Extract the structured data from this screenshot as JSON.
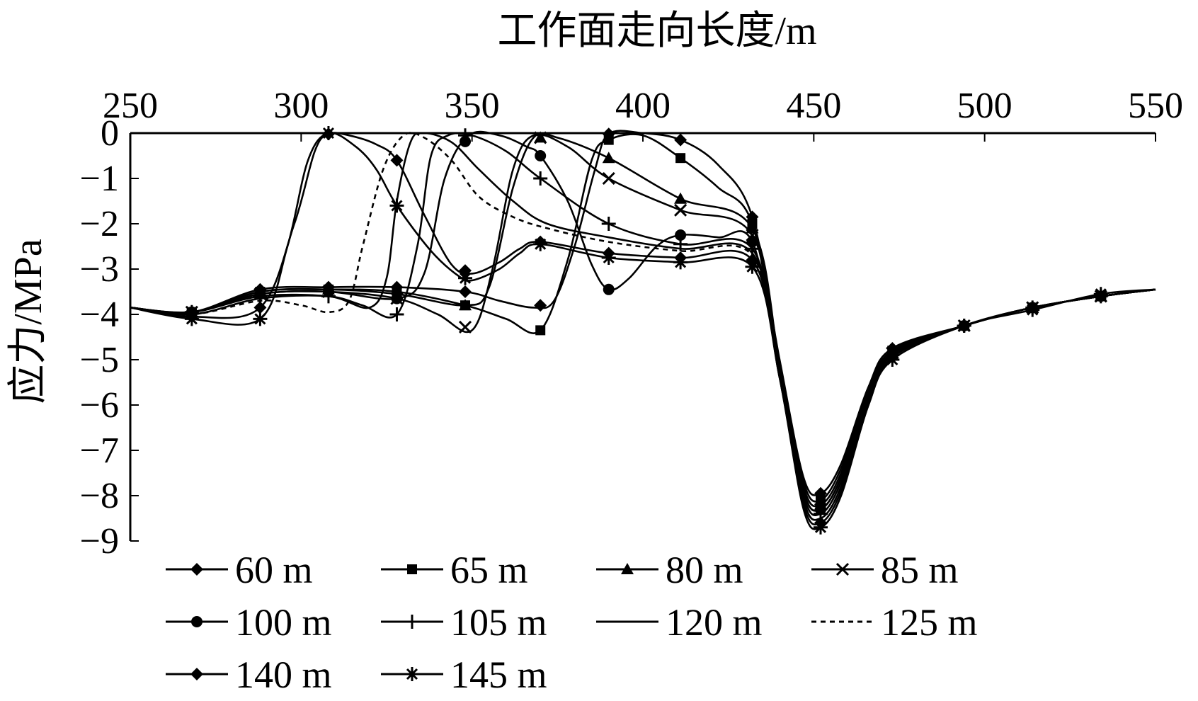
{
  "chart_data": {
    "type": "line",
    "xlabel": "工作面走向长度/m",
    "ylabel": "应力/MPa",
    "xlim": [
      250,
      550
    ],
    "ylim": [
      -9,
      0
    ],
    "x_axis_position": "top",
    "x_ticks": [
      "250",
      "300",
      "350",
      "400",
      "450",
      "500",
      "550"
    ],
    "y_ticks": [
      "0",
      "−1",
      "−2",
      "−3",
      "−4",
      "−5",
      "−6",
      "−7",
      "−8",
      "−9"
    ],
    "grid": false,
    "legend_position": "bottom",
    "series": [
      {
        "name": "60 m",
        "marker": "diamond",
        "dash": "solid",
        "points": [
          [
            250,
            -3.85
          ],
          [
            268,
            -3.95
          ],
          [
            288,
            -3.45
          ],
          [
            308,
            -3.4
          ],
          [
            328,
            -3.4
          ],
          [
            348,
            -3.5
          ],
          [
            358,
            -3.7
          ],
          [
            368,
            -3.85
          ],
          [
            374,
            -3.7
          ],
          [
            380,
            -2.5
          ],
          [
            386,
            -0.8
          ],
          [
            390,
            -0.02
          ],
          [
            400,
            0
          ],
          [
            411,
            -0.15
          ],
          [
            422,
            -0.7
          ],
          [
            432,
            -1.85
          ],
          [
            440,
            -5.0
          ],
          [
            447,
            -7.6
          ],
          [
            452,
            -7.95
          ],
          [
            458,
            -7.3
          ],
          [
            466,
            -5.6
          ],
          [
            473,
            -4.75
          ],
          [
            494,
            -4.25
          ],
          [
            514,
            -3.85
          ],
          [
            534,
            -3.6
          ],
          [
            550,
            -3.45
          ]
        ]
      },
      {
        "name": "65 m",
        "marker": "square",
        "dash": "solid",
        "points": [
          [
            250,
            -3.85
          ],
          [
            268,
            -3.95
          ],
          [
            288,
            -3.5
          ],
          [
            308,
            -3.45
          ],
          [
            328,
            -3.5
          ],
          [
            348,
            -3.8
          ],
          [
            360,
            -4.1
          ],
          [
            370,
            -4.35
          ],
          [
            378,
            -2.8
          ],
          [
            385,
            -0.6
          ],
          [
            390,
            -0.15
          ],
          [
            400,
            -0.05
          ],
          [
            411,
            -0.55
          ],
          [
            422,
            -1.2
          ],
          [
            432,
            -2.0
          ],
          [
            440,
            -5.1
          ],
          [
            447,
            -7.7
          ],
          [
            452,
            -8.1
          ],
          [
            458,
            -7.4
          ],
          [
            466,
            -5.7
          ],
          [
            473,
            -4.8
          ],
          [
            494,
            -4.25
          ],
          [
            514,
            -3.85
          ],
          [
            534,
            -3.6
          ],
          [
            550,
            -3.45
          ]
        ]
      },
      {
        "name": "80 m",
        "marker": "triangle",
        "dash": "solid",
        "points": [
          [
            250,
            -3.85
          ],
          [
            268,
            -3.95
          ],
          [
            288,
            -3.5
          ],
          [
            308,
            -3.45
          ],
          [
            328,
            -3.55
          ],
          [
            348,
            -3.8
          ],
          [
            355,
            -3.4
          ],
          [
            362,
            -1.2
          ],
          [
            368,
            -0.1
          ],
          [
            375,
            -0.1
          ],
          [
            390,
            -0.55
          ],
          [
            411,
            -1.45
          ],
          [
            432,
            -2.1
          ],
          [
            440,
            -5.1
          ],
          [
            447,
            -7.8
          ],
          [
            452,
            -8.2
          ],
          [
            458,
            -7.5
          ],
          [
            466,
            -5.7
          ],
          [
            473,
            -4.8
          ],
          [
            494,
            -4.25
          ],
          [
            514,
            -3.85
          ],
          [
            534,
            -3.6
          ],
          [
            550,
            -3.45
          ]
        ]
      },
      {
        "name": "85 m",
        "marker": "x",
        "dash": "solid",
        "points": [
          [
            250,
            -3.85
          ],
          [
            268,
            -3.95
          ],
          [
            288,
            -3.55
          ],
          [
            308,
            -3.5
          ],
          [
            328,
            -3.65
          ],
          [
            340,
            -4.0
          ],
          [
            350,
            -4.35
          ],
          [
            356,
            -3.0
          ],
          [
            362,
            -0.8
          ],
          [
            368,
            -0.05
          ],
          [
            378,
            -0.3
          ],
          [
            390,
            -1.0
          ],
          [
            411,
            -1.7
          ],
          [
            432,
            -2.25
          ],
          [
            440,
            -5.2
          ],
          [
            447,
            -7.9
          ],
          [
            452,
            -8.3
          ],
          [
            458,
            -7.6
          ],
          [
            466,
            -5.8
          ],
          [
            473,
            -4.85
          ],
          [
            494,
            -4.25
          ],
          [
            514,
            -3.85
          ],
          [
            534,
            -3.6
          ],
          [
            550,
            -3.45
          ]
        ]
      },
      {
        "name": "100 m",
        "marker": "circle",
        "dash": "solid",
        "points": [
          [
            250,
            -3.85
          ],
          [
            268,
            -3.95
          ],
          [
            288,
            -3.55
          ],
          [
            308,
            -3.5
          ],
          [
            328,
            -3.65
          ],
          [
            336,
            -3.1
          ],
          [
            342,
            -1.0
          ],
          [
            349,
            -0.05
          ],
          [
            358,
            -0.05
          ],
          [
            366,
            -0.3
          ],
          [
            370,
            -0.5
          ],
          [
            378,
            -1.5
          ],
          [
            385,
            -2.9
          ],
          [
            390,
            -3.45
          ],
          [
            396,
            -3.2
          ],
          [
            404,
            -2.5
          ],
          [
            411,
            -2.25
          ],
          [
            422,
            -2.3
          ],
          [
            432,
            -2.4
          ],
          [
            440,
            -5.2
          ],
          [
            447,
            -7.9
          ],
          [
            452,
            -8.3
          ],
          [
            458,
            -7.6
          ],
          [
            466,
            -5.8
          ],
          [
            473,
            -4.85
          ],
          [
            494,
            -4.25
          ],
          [
            514,
            -3.85
          ],
          [
            534,
            -3.6
          ],
          [
            550,
            -3.45
          ]
        ]
      },
      {
        "name": "105 m",
        "marker": "plus",
        "dash": "solid",
        "points": [
          [
            250,
            -3.85
          ],
          [
            268,
            -3.95
          ],
          [
            288,
            -3.6
          ],
          [
            308,
            -3.6
          ],
          [
            318,
            -3.8
          ],
          [
            328,
            -4.0
          ],
          [
            334,
            -2.5
          ],
          [
            338,
            -0.5
          ],
          [
            343,
            -0.05
          ],
          [
            350,
            -0.05
          ],
          [
            360,
            -0.4
          ],
          [
            370,
            -1.0
          ],
          [
            390,
            -2.0
          ],
          [
            411,
            -2.45
          ],
          [
            432,
            -2.55
          ],
          [
            440,
            -5.3
          ],
          [
            447,
            -8.0
          ],
          [
            452,
            -8.4
          ],
          [
            458,
            -7.7
          ],
          [
            466,
            -5.9
          ],
          [
            473,
            -4.9
          ],
          [
            494,
            -4.25
          ],
          [
            514,
            -3.85
          ],
          [
            534,
            -3.6
          ],
          [
            550,
            -3.45
          ]
        ]
      },
      {
        "name": "120 m",
        "marker": "none",
        "dash": "solid",
        "points": [
          [
            250,
            -3.85
          ],
          [
            268,
            -4.0
          ],
          [
            288,
            -3.65
          ],
          [
            308,
            -3.6
          ],
          [
            320,
            -3.85
          ],
          [
            325,
            -3.2
          ],
          [
            328,
            -1.5
          ],
          [
            332,
            -0.2
          ],
          [
            336,
            0
          ],
          [
            344,
            -0.2
          ],
          [
            352,
            -0.8
          ],
          [
            362,
            -1.5
          ],
          [
            372,
            -2.0
          ],
          [
            390,
            -2.3
          ],
          [
            411,
            -2.55
          ],
          [
            432,
            -2.65
          ],
          [
            440,
            -5.3
          ],
          [
            447,
            -8.1
          ],
          [
            452,
            -8.5
          ],
          [
            458,
            -7.8
          ],
          [
            466,
            -5.9
          ],
          [
            473,
            -4.9
          ],
          [
            494,
            -4.25
          ],
          [
            514,
            -3.85
          ],
          [
            534,
            -3.6
          ],
          [
            550,
            -3.45
          ]
        ]
      },
      {
        "name": "125 m",
        "marker": "none",
        "dash": "dashed",
        "points": [
          [
            250,
            -3.85
          ],
          [
            268,
            -4.0
          ],
          [
            288,
            -3.7
          ],
          [
            300,
            -3.8
          ],
          [
            308,
            -3.95
          ],
          [
            314,
            -3.7
          ],
          [
            318,
            -2.5
          ],
          [
            324,
            -0.8
          ],
          [
            330,
            -0.05
          ],
          [
            336,
            -0.1
          ],
          [
            344,
            -0.6
          ],
          [
            352,
            -1.4
          ],
          [
            362,
            -1.85
          ],
          [
            372,
            -2.1
          ],
          [
            390,
            -2.4
          ],
          [
            411,
            -2.6
          ],
          [
            432,
            -2.7
          ],
          [
            440,
            -5.35
          ],
          [
            447,
            -8.1
          ],
          [
            452,
            -8.5
          ],
          [
            458,
            -7.8
          ],
          [
            466,
            -5.9
          ],
          [
            473,
            -4.9
          ],
          [
            494,
            -4.25
          ],
          [
            514,
            -3.85
          ],
          [
            534,
            -3.6
          ],
          [
            550,
            -3.45
          ]
        ]
      },
      {
        "name": "140 m",
        "marker": "diamond",
        "dash": "solid",
        "points": [
          [
            250,
            -3.85
          ],
          [
            268,
            -4.05
          ],
          [
            288,
            -3.85
          ],
          [
            298,
            -2.0
          ],
          [
            304,
            -0.4
          ],
          [
            308,
            -0.02
          ],
          [
            314,
            -0.05
          ],
          [
            322,
            -0.25
          ],
          [
            328,
            -0.6
          ],
          [
            336,
            -1.8
          ],
          [
            344,
            -2.9
          ],
          [
            350,
            -3.1
          ],
          [
            358,
            -2.85
          ],
          [
            364,
            -2.55
          ],
          [
            370,
            -2.4
          ],
          [
            390,
            -2.65
          ],
          [
            411,
            -2.75
          ],
          [
            432,
            -2.8
          ],
          [
            440,
            -5.4
          ],
          [
            447,
            -8.2
          ],
          [
            452,
            -8.6
          ],
          [
            458,
            -7.9
          ],
          [
            466,
            -6.0
          ],
          [
            473,
            -4.95
          ],
          [
            494,
            -4.25
          ],
          [
            514,
            -3.85
          ],
          [
            534,
            -3.6
          ],
          [
            550,
            -3.45
          ]
        ]
      },
      {
        "name": "145 m",
        "marker": "asterisk",
        "dash": "solid",
        "points": [
          [
            250,
            -3.85
          ],
          [
            268,
            -4.1
          ],
          [
            288,
            -4.1
          ],
          [
            296,
            -2.5
          ],
          [
            302,
            -0.6
          ],
          [
            308,
            0
          ],
          [
            316,
            -0.3
          ],
          [
            322,
            -0.8
          ],
          [
            328,
            -1.6
          ],
          [
            338,
            -2.6
          ],
          [
            346,
            -3.15
          ],
          [
            350,
            -3.25
          ],
          [
            358,
            -3.0
          ],
          [
            364,
            -2.65
          ],
          [
            370,
            -2.45
          ],
          [
            390,
            -2.75
          ],
          [
            411,
            -2.85
          ],
          [
            432,
            -2.95
          ],
          [
            440,
            -5.4
          ],
          [
            447,
            -8.3
          ],
          [
            452,
            -8.7
          ],
          [
            458,
            -8.0
          ],
          [
            466,
            -6.0
          ],
          [
            473,
            -5.0
          ],
          [
            494,
            -4.25
          ],
          [
            514,
            -3.9
          ],
          [
            534,
            -3.55
          ],
          [
            550,
            -3.45
          ]
        ]
      }
    ]
  }
}
